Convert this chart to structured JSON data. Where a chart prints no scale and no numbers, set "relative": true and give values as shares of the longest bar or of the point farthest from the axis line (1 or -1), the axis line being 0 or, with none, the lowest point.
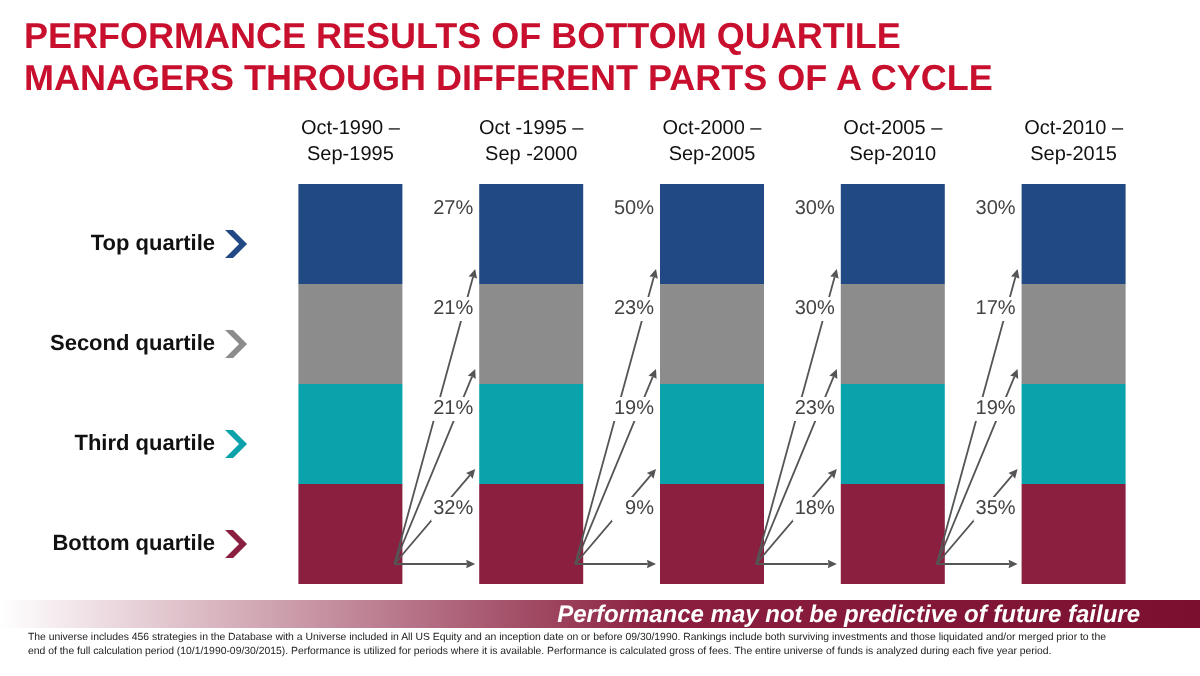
{
  "chart_data": {
    "type": "bar",
    "title": "PERFORMANCE RESULTS OF BOTTOM QUARTILE MANAGERS THROUGH DIFFERENT PARTS OF A CYCLE",
    "categories": [
      "Oct-1990 –\nSep-1995",
      "Oct -1995 –\nSep -2000",
      "Oct-2000 –\nSep-2005",
      "Oct-2005 –\nSep-2010",
      "Oct-2010 –\nSep-2015"
    ],
    "stacked": true,
    "relative": true,
    "legend": "left",
    "series": [
      {
        "name": "Bottom quartile",
        "color": "#8a1f3f",
        "values": [
          0.25,
          0.25,
          0.25,
          0.25,
          0.25
        ]
      },
      {
        "name": "Third quartile",
        "color": "#0aa3ac",
        "values": [
          0.25,
          0.25,
          0.25,
          0.25,
          0.25
        ]
      },
      {
        "name": "Second quartile",
        "color": "#8c8c8c",
        "values": [
          0.25,
          0.25,
          0.25,
          0.25,
          0.25
        ]
      },
      {
        "name": "Top quartile",
        "color": "#214a84",
        "values": [
          0.25,
          0.25,
          0.25,
          0.25,
          0.25
        ]
      }
    ],
    "annotations": [
      "Performance may not be predictive of future failure",
      "The universe includes 456 strategies in the Database with a Universe included in All US Equity and an inception date on or before 09/30/1990.  Rankings include both surviving investments and those liquidated and/or merged prior to the end of the full calculation period (10/1/1990-09/30/2015).  Performance is utilized for periods where it is available.  Performance is calculated gross of fees. The entire universe of funds is analyzed during each five year period.",
      "27%",
      "21%",
      "21%",
      "32%",
      "50%",
      "23%",
      "19%",
      "9%",
      "30%",
      "30%",
      "23%",
      "18%",
      "30%",
      "17%",
      "19%",
      "35%"
    ]
  }
}
